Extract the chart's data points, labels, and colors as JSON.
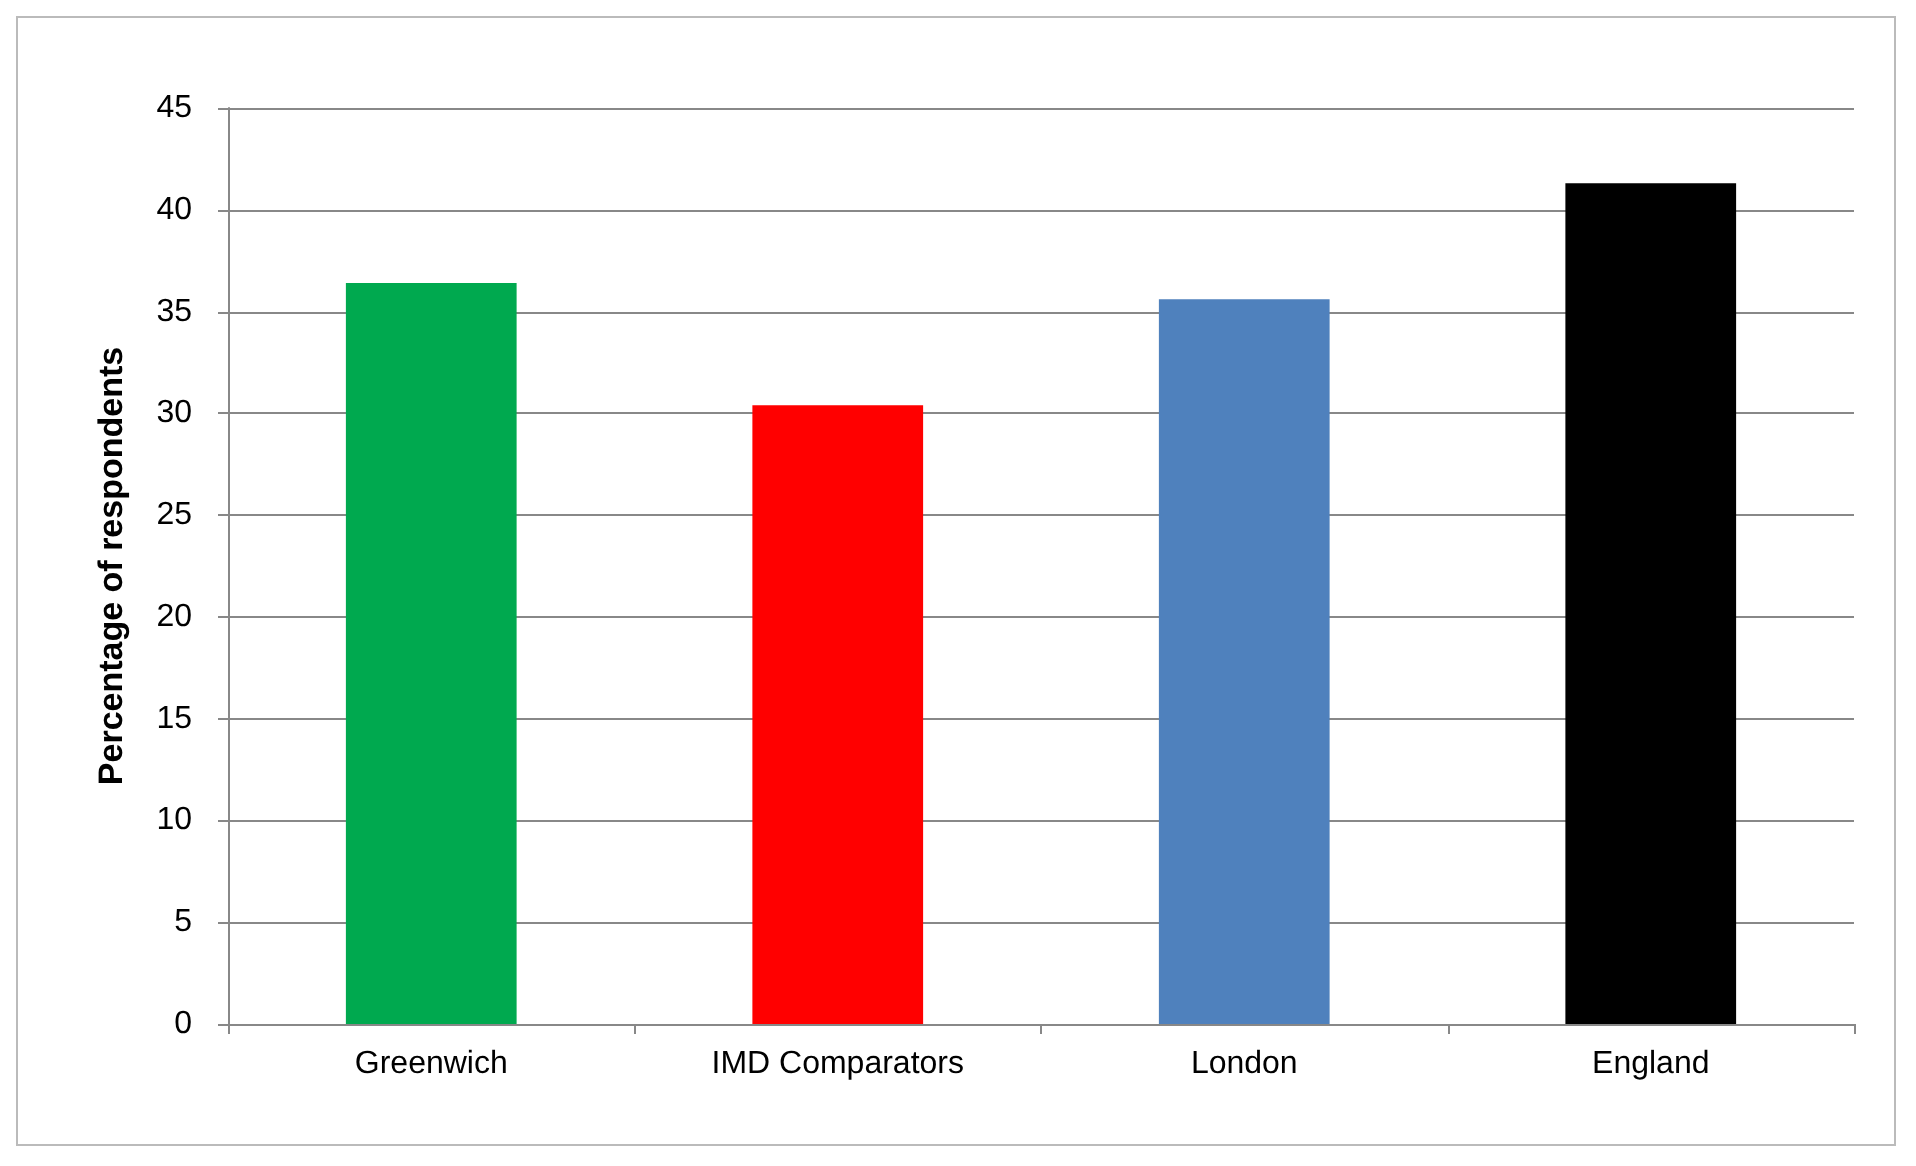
{
  "chart_data": {
    "type": "bar",
    "ylabel": "Percentage of respondents",
    "categories": [
      "Greenwich",
      "IMD Comparators",
      "London",
      "England"
    ],
    "values": [
      36.4,
      30.4,
      35.6,
      41.3
    ],
    "colors": [
      "#00a94f",
      "#ff0000",
      "#4f81bd",
      "#000000"
    ],
    "ylim": [
      0,
      45
    ],
    "yticks": [
      0,
      5,
      10,
      15,
      20,
      25,
      30,
      35,
      40,
      45
    ],
    "grid": "y"
  }
}
